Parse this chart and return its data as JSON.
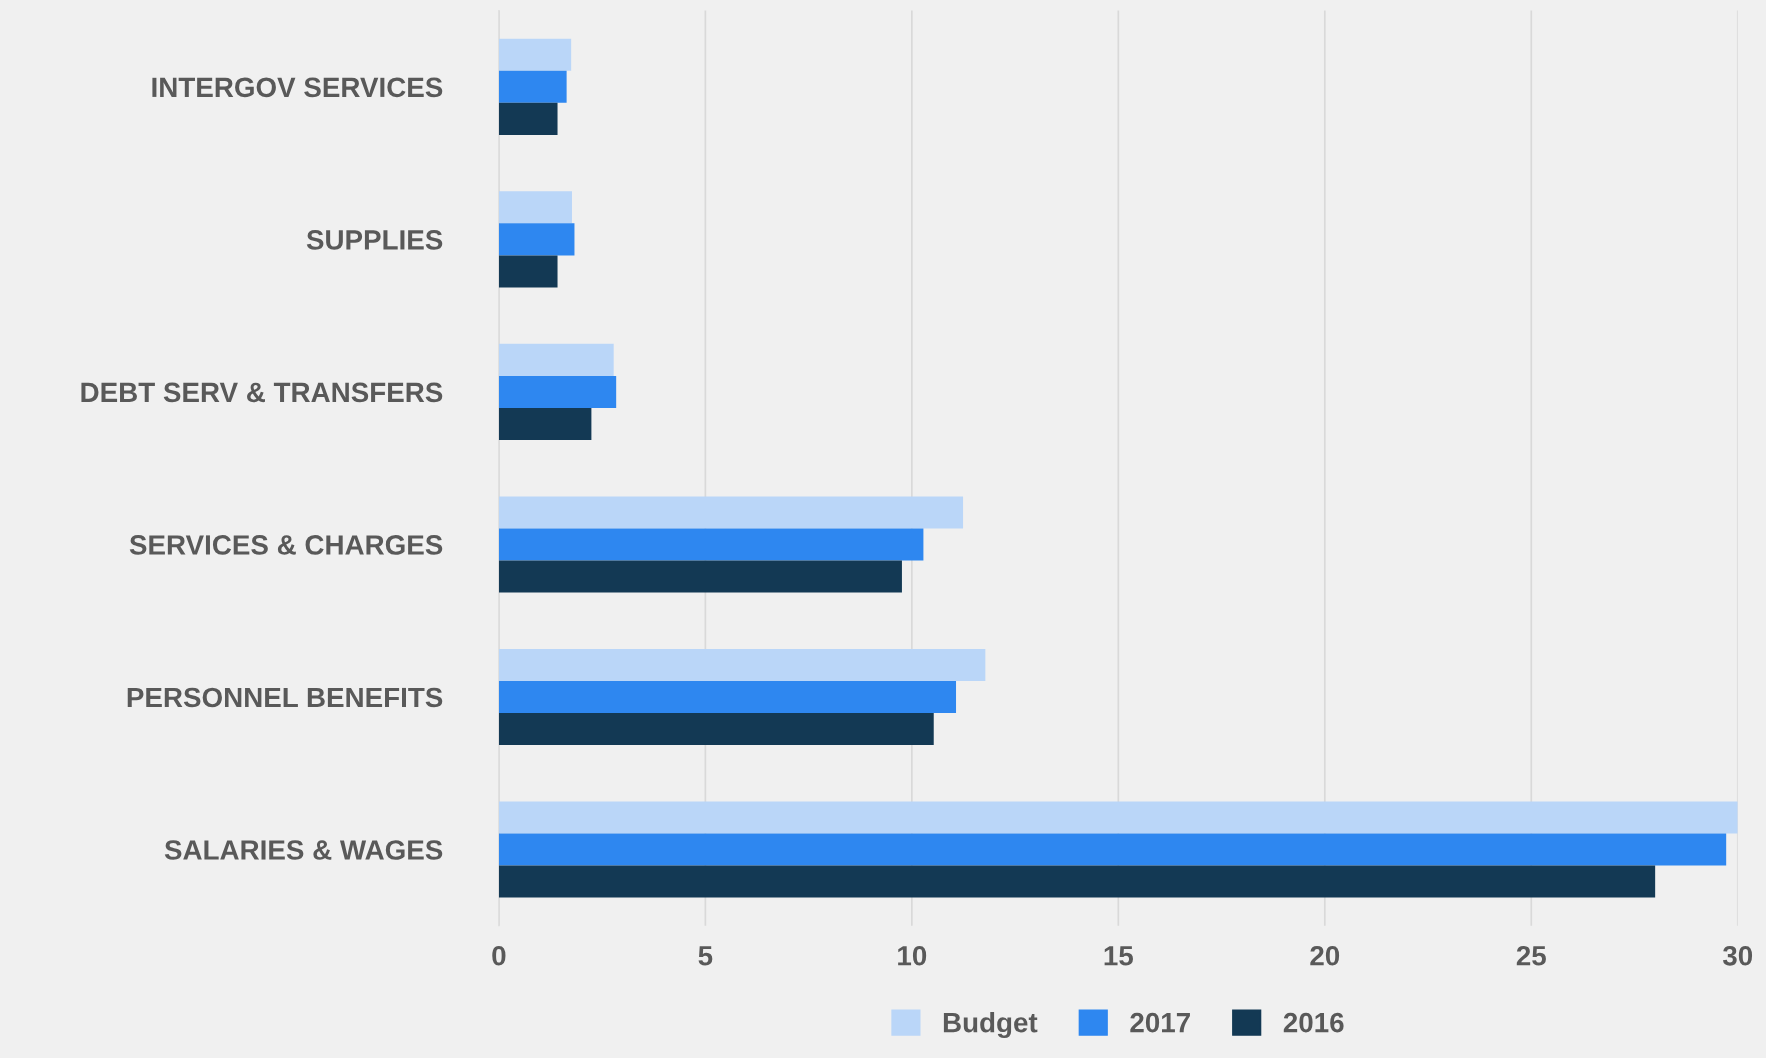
{
  "chart_data": {
    "type": "bar",
    "orientation": "horizontal",
    "categories": [
      "INTERGOV SERVICES",
      "SUPPLIES",
      "DEBT SERV & TRANSFERS",
      "SERVICES & CHARGES",
      "PERSONNEL BENEFITS",
      "SALARIES & WAGES"
    ],
    "series": [
      {
        "name": "Budget",
        "color": "#bad6f8",
        "values": [
          1.75,
          1.77,
          2.78,
          11.24,
          11.78,
          30.0
        ]
      },
      {
        "name": "2017",
        "color": "#2e87f0",
        "values": [
          1.64,
          1.83,
          2.84,
          10.28,
          11.07,
          29.72
        ]
      },
      {
        "name": "2016",
        "color": "#133954",
        "values": [
          1.42,
          1.42,
          2.24,
          9.76,
          10.53,
          28.0
        ]
      }
    ],
    "xlim": [
      0,
      30
    ],
    "xticks": [
      0,
      5,
      10,
      15,
      20,
      25,
      30
    ],
    "grid": "x",
    "legend": "bottom"
  }
}
